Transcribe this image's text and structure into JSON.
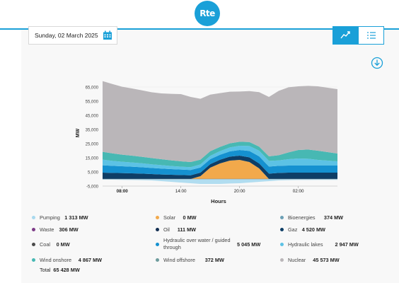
{
  "header": {
    "logo_text": "Rte"
  },
  "date_picker": {
    "value": "Sunday, 02 March 2025",
    "icon": "calendar-icon"
  },
  "view_toggle": {
    "chart_icon": "line-chart-icon",
    "table_icon": "list-icon",
    "active": "chart"
  },
  "download": {
    "icon": "download-icon"
  },
  "colors": {
    "accent": "#1aa0d8",
    "nuclear": "#bab6b9",
    "wind_onshore": "#47b8b3",
    "hydraulic_lakes": "#5cc2e5",
    "hydraulic_water": "#1591d0",
    "gaz": "#0e3e66",
    "solar": "#f2a94b",
    "bioenergies": "#6b9fb5",
    "pumping": "#a8d9ee",
    "waste": "#7d3b87",
    "oil": "#132f52",
    "coal": "#4a4a4a",
    "wind_offshore": "#6e9c9d"
  },
  "chart_data": {
    "type": "area",
    "xlabel": "Hours",
    "ylabel": "MW",
    "ylim": [
      -5000,
      70000
    ],
    "yticks": [
      -5000,
      5000,
      15000,
      25000,
      35000,
      45000,
      55000,
      65000
    ],
    "ytick_labels": [
      "-5,000",
      "5,000",
      "15,000",
      "25,000",
      "35,000",
      "45,000",
      "55,000",
      "65,000"
    ],
    "xticks": [
      8,
      14,
      20,
      26
    ],
    "xtick_labels": [
      "08:00",
      "14:00",
      "20:00",
      "02:00"
    ],
    "xlim": [
      6,
      30
    ],
    "grid": true,
    "x": [
      6,
      7,
      8,
      9,
      10,
      11,
      12,
      13,
      14,
      15,
      16,
      17,
      18,
      19,
      20,
      21,
      22,
      23,
      24,
      25,
      26,
      27,
      28,
      29,
      30
    ],
    "series": [
      {
        "name": "Solar",
        "color": "#f2a94b",
        "values": [
          0,
          0,
          0,
          0,
          0,
          0,
          0,
          0,
          0,
          0,
          2000,
          8000,
          11000,
          13000,
          13500,
          12000,
          7500,
          0,
          0,
          0,
          0,
          0,
          0,
          0,
          0
        ]
      },
      {
        "name": "Pumping",
        "color": "#a8d9ee",
        "values": [
          -500,
          -500,
          -600,
          -700,
          -800,
          -1000,
          -1500,
          -2000,
          -2500,
          -3000,
          -3500,
          -3500,
          -3500,
          -3200,
          -3000,
          -2500,
          -2000,
          -1500,
          -1000,
          -800,
          -700,
          -700,
          -600,
          -600,
          -600
        ]
      },
      {
        "name": "Gaz",
        "color": "#0e3e66",
        "values": [
          4500,
          4300,
          4200,
          4000,
          3800,
          3500,
          3200,
          3000,
          2800,
          2600,
          2500,
          2500,
          2600,
          2800,
          3000,
          3300,
          3500,
          3800,
          4300,
          4500,
          4500,
          4500,
          4500,
          4500,
          4500
        ]
      },
      {
        "name": "Hydraulic over water / guided through",
        "color": "#1591d0",
        "values": [
          5200,
          5000,
          4800,
          4700,
          4500,
          4300,
          4200,
          4000,
          3900,
          3800,
          3600,
          3500,
          3500,
          3700,
          4000,
          4500,
          5000,
          5000,
          5000,
          5000,
          5000,
          5000,
          5000,
          5000,
          5000
        ]
      },
      {
        "name": "Hydraulic lakes",
        "color": "#5cc2e5",
        "values": [
          4000,
          3500,
          3200,
          3000,
          2800,
          2600,
          2400,
          2200,
          2000,
          2000,
          2200,
          2400,
          2600,
          2800,
          3000,
          3500,
          4000,
          4000,
          3800,
          4500,
          5000,
          4800,
          4000,
          3500,
          3000
        ]
      },
      {
        "name": "Wind onshore",
        "color": "#47b8b3",
        "values": [
          5500,
          5300,
          5000,
          4800,
          4600,
          4400,
          4200,
          4000,
          3800,
          3600,
          3400,
          3200,
          3000,
          2900,
          2800,
          2800,
          2900,
          3200,
          3700,
          4800,
          6000,
          6500,
          6500,
          6000,
          5500
        ]
      },
      {
        "name": "Nuclear",
        "color": "#bab6b9",
        "values": [
          50000,
          49000,
          48000,
          47500,
          47000,
          46500,
          46500,
          47000,
          47500,
          46000,
          43000,
          40000,
          38000,
          36500,
          35500,
          36000,
          38500,
          42000,
          45500,
          46000,
          45000,
          45000,
          45500,
          45500,
          45500
        ]
      }
    ]
  },
  "legend": [
    {
      "name": "Pumping",
      "value": "1 313 MW",
      "color": "#a8d9ee"
    },
    {
      "name": "Solar",
      "value": "0 MW",
      "color": "#f2a94b"
    },
    {
      "name": "Bioenergies",
      "value": "374 MW",
      "color": "#6b9fb5"
    },
    {
      "name": "Waste",
      "value": "306 MW",
      "color": "#7d3b87"
    },
    {
      "name": "Oil",
      "value": "111 MW",
      "color": "#132f52"
    },
    {
      "name": "Gaz",
      "value": "4 520 MW",
      "color": "#0e3e66"
    },
    {
      "name": "Coal",
      "value": "0 MW",
      "color": "#4a4a4a"
    },
    {
      "name": "Hydraulic over water / guided through",
      "value": "5 045 MW",
      "color": "#1591d0"
    },
    {
      "name": "Hydraulic lakes",
      "value": "2 947 MW",
      "color": "#5cc2e5"
    },
    {
      "name": "Wind onshore",
      "value": "4 867 MW",
      "color": "#47b8b3"
    },
    {
      "name": "Wind offshore",
      "value": "372 MW",
      "color": "#6e9c9d"
    },
    {
      "name": "Nuclear",
      "value": "45 573 MW",
      "color": "#bab6b9"
    }
  ],
  "total": {
    "label": "Total",
    "value": "65 428 MW"
  }
}
